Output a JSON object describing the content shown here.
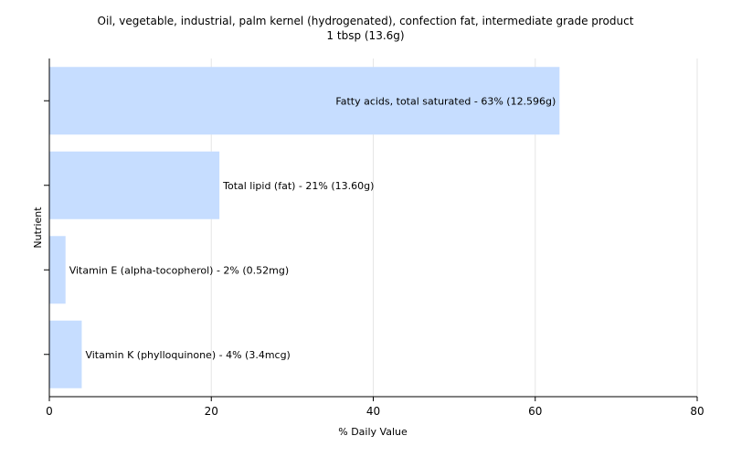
{
  "chart_data": {
    "type": "bar",
    "orientation": "horizontal",
    "title": "Oil, vegetable, industrial, palm kernel (hydrogenated), confection fat, intermediate grade product",
    "subtitle": "1 tbsp (13.6g)",
    "xlabel": "% Daily Value",
    "ylabel": "Nutrient",
    "xlim": [
      0,
      80
    ],
    "xticks": [
      0,
      20,
      40,
      60,
      80
    ],
    "grid": true,
    "bar_color": "#c6ddff",
    "categories": [
      "Fatty acids, total saturated",
      "Total lipid (fat)",
      "Vitamin E (alpha-tocopherol)",
      "Vitamin K (phylloquinone)"
    ],
    "values": [
      63,
      21,
      2,
      4
    ],
    "labels": [
      "Fatty acids, total saturated - 63% (12.596g)",
      "Total lipid (fat) - 21% (13.60g)",
      "Vitamin E (alpha-tocopherol) - 2% (0.52mg)",
      "Vitamin K (phylloquinone) - 4% (3.4mcg)"
    ]
  }
}
